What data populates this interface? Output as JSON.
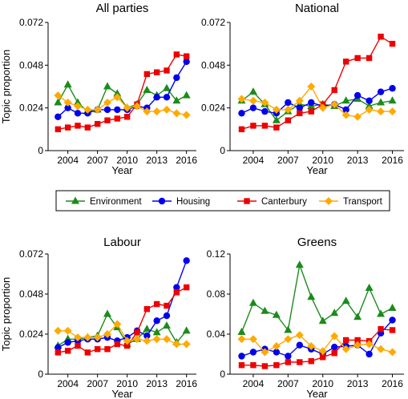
{
  "chart_data": [
    {
      "type": "line",
      "title": "All parties",
      "xlabel": "Year",
      "ylabel": "Topic proportion",
      "x": [
        2003,
        2004,
        2005,
        2006,
        2007,
        2008,
        2009,
        2010,
        2011,
        2012,
        2013,
        2014,
        2015,
        2016
      ],
      "xticks": [
        "2004",
        "2007",
        "2010",
        "2013",
        "2016"
      ],
      "yticks": [
        "0",
        "0.024",
        "0.048",
        "0.072"
      ],
      "ylim": [
        0,
        0.072
      ],
      "grid": false,
      "series": [
        {
          "name": "Environment",
          "values": [
            0.027,
            0.037,
            0.027,
            0.022,
            0.023,
            0.036,
            0.032,
            0.024,
            0.026,
            0.034,
            0.031,
            0.035,
            0.028,
            0.031
          ]
        },
        {
          "name": "Housing",
          "values": [
            0.019,
            0.024,
            0.021,
            0.021,
            0.023,
            0.023,
            0.023,
            0.023,
            0.025,
            0.024,
            0.03,
            0.03,
            0.041,
            0.05
          ]
        },
        {
          "name": "Canterbury",
          "values": [
            0.012,
            0.013,
            0.014,
            0.013,
            0.015,
            0.017,
            0.018,
            0.019,
            0.026,
            0.043,
            0.044,
            0.045,
            0.054,
            0.053
          ]
        },
        {
          "name": "Transport",
          "values": [
            0.031,
            0.027,
            0.025,
            0.023,
            0.023,
            0.027,
            0.03,
            0.024,
            0.025,
            0.022,
            0.022,
            0.023,
            0.021,
            0.02
          ]
        }
      ]
    },
    {
      "type": "line",
      "title": "National",
      "xlabel": "Year",
      "ylabel": "",
      "x": [
        2003,
        2004,
        2005,
        2006,
        2007,
        2008,
        2009,
        2010,
        2011,
        2012,
        2013,
        2014,
        2015,
        2016
      ],
      "xticks": [
        "2004",
        "2007",
        "2010",
        "2013",
        "2016"
      ],
      "yticks": [
        "0",
        "0.024",
        "0.048",
        "0.072"
      ],
      "ylim": [
        0,
        0.072
      ],
      "grid": false,
      "series": [
        {
          "name": "Environment",
          "values": [
            0.028,
            0.033,
            0.026,
            0.017,
            0.022,
            0.026,
            0.025,
            0.026,
            0.025,
            0.028,
            0.029,
            0.025,
            0.027,
            0.028
          ]
        },
        {
          "name": "Housing",
          "values": [
            0.021,
            0.024,
            0.022,
            0.021,
            0.027,
            0.024,
            0.027,
            0.025,
            0.026,
            0.023,
            0.031,
            0.028,
            0.033,
            0.035
          ]
        },
        {
          "name": "Canterbury",
          "values": [
            0.012,
            0.014,
            0.014,
            0.013,
            0.017,
            0.021,
            0.022,
            0.026,
            0.034,
            0.05,
            0.052,
            0.052,
            0.064,
            0.06
          ]
        },
        {
          "name": "Transport",
          "values": [
            0.029,
            0.028,
            0.027,
            0.023,
            0.023,
            0.028,
            0.036,
            0.024,
            0.026,
            0.02,
            0.019,
            0.023,
            0.022,
            0.022
          ]
        }
      ]
    },
    {
      "type": "line",
      "title": "Labour",
      "xlabel": "Year",
      "ylabel": "Topic proportion",
      "x": [
        2003,
        2004,
        2005,
        2006,
        2007,
        2008,
        2009,
        2010,
        2011,
        2012,
        2013,
        2014,
        2015,
        2016
      ],
      "xticks": [
        "2004",
        "2007",
        "2010",
        "2013",
        "2016"
      ],
      "yticks": [
        "0",
        "0.024",
        "0.048",
        "0.072"
      ],
      "ylim": [
        0,
        0.072
      ],
      "grid": false,
      "series": [
        {
          "name": "Environment",
          "values": [
            0.017,
            0.021,
            0.021,
            0.022,
            0.023,
            0.036,
            0.028,
            0.018,
            0.021,
            0.027,
            0.025,
            0.029,
            0.019,
            0.026
          ]
        },
        {
          "name": "Housing",
          "values": [
            0.016,
            0.019,
            0.02,
            0.021,
            0.021,
            0.022,
            0.02,
            0.022,
            0.026,
            0.023,
            0.032,
            0.035,
            0.052,
            0.068
          ]
        },
        {
          "name": "Canterbury",
          "values": [
            0.013,
            0.014,
            0.017,
            0.013,
            0.015,
            0.015,
            0.018,
            0.017,
            0.025,
            0.039,
            0.042,
            0.041,
            0.049,
            0.052
          ]
        },
        {
          "name": "Transport",
          "values": [
            0.026,
            0.026,
            0.022,
            0.022,
            0.022,
            0.024,
            0.03,
            0.02,
            0.021,
            0.02,
            0.021,
            0.021,
            0.018,
            0.018
          ]
        }
      ]
    },
    {
      "type": "line",
      "title": "Greens",
      "xlabel": "Year",
      "ylabel": "",
      "x": [
        2003,
        2004,
        2005,
        2006,
        2007,
        2008,
        2009,
        2010,
        2011,
        2012,
        2013,
        2014,
        2015,
        2016
      ],
      "xticks": [
        "2004",
        "2007",
        "2010",
        "2013",
        "2016"
      ],
      "yticks": [
        "0",
        "0.04",
        "0.08",
        "0.12"
      ],
      "ylim": [
        0,
        0.12
      ],
      "grid": false,
      "series": [
        {
          "name": "Environment",
          "values": [
            0.042,
            0.071,
            0.063,
            0.059,
            0.044,
            0.109,
            0.077,
            0.053,
            0.061,
            0.073,
            0.057,
            0.086,
            0.06,
            0.066
          ]
        },
        {
          "name": "Housing",
          "values": [
            0.018,
            0.022,
            0.025,
            0.022,
            0.018,
            0.029,
            0.025,
            0.02,
            0.027,
            0.028,
            0.029,
            0.02,
            0.041,
            0.054
          ]
        },
        {
          "name": "Canterbury",
          "values": [
            0.009,
            0.009,
            0.008,
            0.009,
            0.012,
            0.012,
            0.013,
            0.017,
            0.021,
            0.034,
            0.034,
            0.033,
            0.045,
            0.044
          ]
        },
        {
          "name": "Transport",
          "values": [
            0.035,
            0.035,
            0.022,
            0.028,
            0.035,
            0.039,
            0.028,
            0.023,
            0.038,
            0.025,
            0.029,
            0.03,
            0.025,
            0.022
          ]
        }
      ]
    }
  ],
  "legend": {
    "placement": "center",
    "entries": [
      {
        "label": "Environment",
        "color": "#1a8c1a",
        "marker": "triangle"
      },
      {
        "label": "Housing",
        "color": "#0000ee",
        "marker": "circle"
      },
      {
        "label": "Canterbury",
        "color": "#ee0000",
        "marker": "square"
      },
      {
        "label": "Transport",
        "color": "#ffaa00",
        "marker": "diamond"
      }
    ]
  }
}
